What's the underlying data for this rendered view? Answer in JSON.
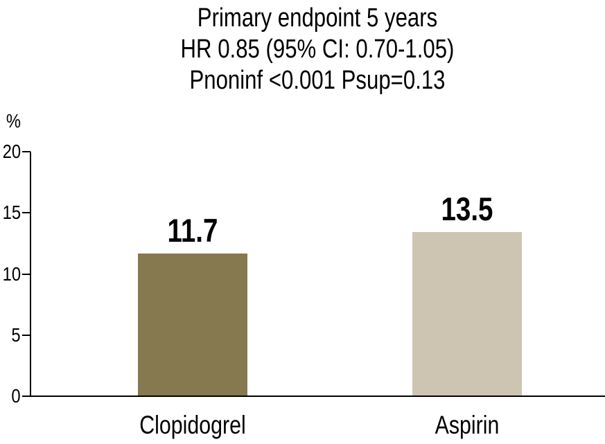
{
  "chart_data": {
    "type": "bar",
    "title_lines": [
      "Primary endpoint 5 years",
      "HR 0.85 (95% CI: 0.70-1.05)",
      "Pnoninf <0.001 Psup=0.13"
    ],
    "ylabel": "%",
    "xlabel": "",
    "categories": [
      "Clopidogrel",
      "Aspirin"
    ],
    "values": [
      11.7,
      13.5
    ],
    "value_labels": [
      "11.7",
      "13.5"
    ],
    "bar_colors": [
      "#86794f",
      "#cdc5b1"
    ],
    "yticks": [
      0,
      5,
      10,
      15,
      20
    ],
    "ytick_labels": [
      "0",
      "5",
      "10",
      "15",
      "20"
    ],
    "ylim": [
      0,
      20
    ],
    "grid": false,
    "legend": "none",
    "axis_color": "#000000",
    "text_color": "#000000",
    "background_color": "#ffffff"
  }
}
